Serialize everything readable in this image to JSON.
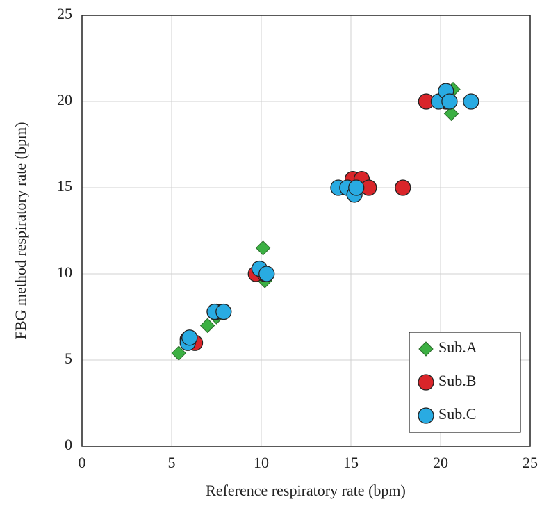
{
  "chart_data": {
    "type": "scatter",
    "x_label": "Reference respiratory rate (bpm)",
    "y_label": "FBG method respiratory rate (bpm)",
    "xlim": [
      0,
      25
    ],
    "ylim": [
      0,
      25
    ],
    "xticks": [
      0,
      5,
      10,
      15,
      20,
      25
    ],
    "yticks": [
      0,
      5,
      10,
      15,
      20,
      25
    ],
    "grid": true,
    "legend": "lower right",
    "series": [
      {
        "name": "Sub.A",
        "color": "#3cb043",
        "marker": "diamond",
        "x": [
          5.4,
          7.0,
          10.1,
          10.2,
          20.7,
          20.6,
          15.3,
          7.5,
          6.1
        ],
        "values": [
          5.4,
          7.0,
          11.5,
          9.6,
          20.7,
          19.3,
          15.0,
          7.5,
          6.0
        ]
      },
      {
        "name": "Sub.B",
        "color": "#d9252a",
        "marker": "circle",
        "x": [
          5.9,
          6.3,
          9.7,
          15.1,
          15.6,
          16.0,
          17.9,
          19.2,
          20.3,
          7.5,
          10.2
        ],
        "values": [
          6.2,
          6.0,
          10.0,
          15.5,
          15.5,
          15.0,
          15.0,
          20.0,
          20.0,
          7.8,
          10.0
        ]
      },
      {
        "name": "Sub.C",
        "color": "#29abe2",
        "marker": "circle",
        "x": [
          5.9,
          6.0,
          7.4,
          7.9,
          9.9,
          10.3,
          14.3,
          14.8,
          15.2,
          15.3,
          19.9,
          20.3,
          20.5,
          21.7
        ],
        "values": [
          6.0,
          6.3,
          7.8,
          7.8,
          10.3,
          10.0,
          15.0,
          15.0,
          14.6,
          15.0,
          20.0,
          20.6,
          20.0,
          20.0
        ]
      }
    ]
  }
}
